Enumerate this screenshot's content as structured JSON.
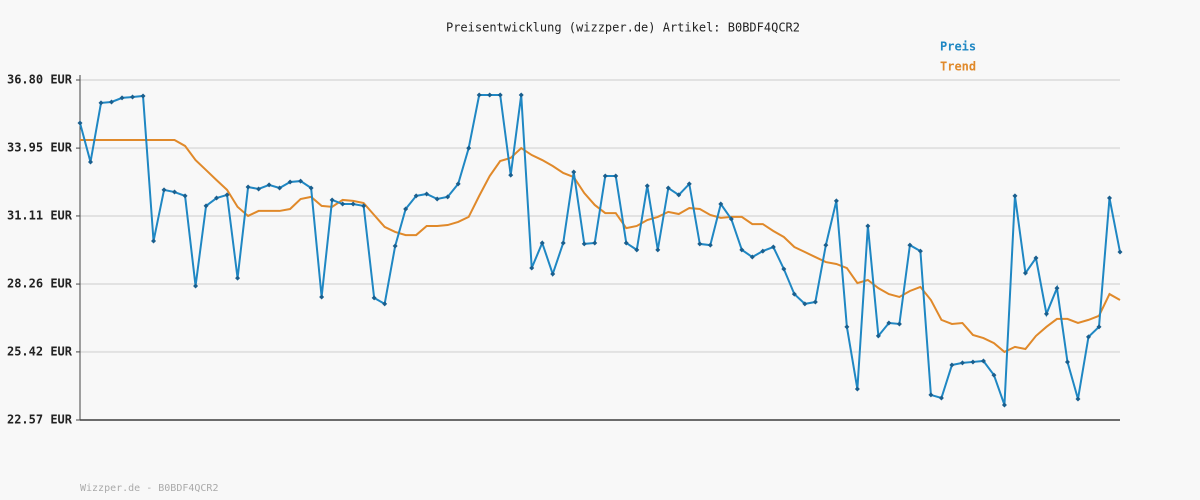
{
  "chart_data": {
    "type": "line",
    "title": "Preisentwicklung (wizzper.de) Artikel: B0BDF4QCR2",
    "footer": "Wizzper.de - B0BDF4QCR2",
    "categories": [
      null,
      null,
      null,
      null,
      null,
      null,
      null,
      null,
      null,
      null,
      null,
      null,
      null,
      null,
      null,
      null,
      null,
      null,
      null,
      null,
      null,
      null,
      null,
      null,
      null,
      null,
      null,
      null,
      null,
      null,
      null,
      null,
      null,
      null,
      null,
      null,
      null,
      null,
      null,
      null,
      null,
      null,
      null,
      null,
      null,
      null,
      null,
      null,
      null,
      null,
      null,
      null,
      null,
      null,
      null,
      null,
      null,
      null,
      null,
      null,
      null,
      null,
      null,
      null,
      null,
      null,
      null,
      null,
      null,
      null,
      null,
      null,
      null,
      null,
      null,
      null,
      null,
      null,
      null,
      null,
      null,
      null,
      null,
      null,
      null,
      null,
      null,
      null,
      null,
      null,
      null,
      null,
      null,
      null,
      null,
      null,
      null,
      null,
      null,
      null
    ],
    "series": [
      {
        "name": "Preis",
        "color": "#1f87c3",
        "markers": true,
        "values": [
          35.0,
          33.37,
          35.84,
          35.88,
          36.05,
          36.09,
          36.13,
          30.06,
          32.2,
          32.11,
          31.95,
          28.18,
          31.53,
          31.86,
          31.99,
          28.51,
          32.32,
          32.24,
          32.41,
          32.28,
          32.53,
          32.57,
          32.28,
          27.72,
          31.78,
          31.61,
          31.61,
          31.53,
          27.68,
          27.43,
          29.85,
          31.4,
          31.95,
          32.03,
          31.82,
          31.91,
          32.45,
          33.95,
          36.17,
          36.17,
          36.17,
          32.82,
          36.17,
          28.93,
          29.98,
          28.68,
          29.98,
          32.95,
          29.94,
          29.98,
          32.78,
          32.78,
          29.98,
          29.69,
          32.37,
          29.69,
          32.28,
          31.99,
          32.45,
          29.94,
          29.89,
          31.61,
          30.98,
          29.69,
          29.39,
          29.64,
          29.81,
          28.89,
          27.84,
          27.43,
          27.51,
          29.89,
          31.74,
          26.47,
          23.87,
          30.69,
          26.09,
          26.63,
          26.59,
          29.89,
          29.64,
          23.62,
          23.49,
          24.87,
          24.96,
          25.0,
          25.04,
          24.45,
          23.2,
          31.95,
          28.72,
          29.35,
          27.01,
          28.09,
          25.0,
          23.45,
          26.05,
          26.47,
          31.86,
          29.6
        ]
      },
      {
        "name": "Trend",
        "color": "#e0892a",
        "markers": false,
        "values": [
          34.29,
          34.29,
          34.29,
          34.29,
          34.29,
          34.29,
          34.29,
          34.29,
          34.29,
          34.29,
          34.04,
          33.45,
          33.03,
          32.61,
          32.2,
          31.49,
          31.11,
          31.32,
          31.32,
          31.32,
          31.4,
          31.82,
          31.91,
          31.53,
          31.49,
          31.78,
          31.74,
          31.65,
          31.15,
          30.65,
          30.44,
          30.31,
          30.31,
          30.69,
          30.69,
          30.73,
          30.86,
          31.07,
          31.95,
          32.78,
          33.41,
          33.54,
          33.95,
          33.66,
          33.45,
          33.2,
          32.91,
          32.74,
          32.07,
          31.57,
          31.23,
          31.23,
          30.6,
          30.69,
          30.94,
          31.07,
          31.28,
          31.19,
          31.44,
          31.4,
          31.15,
          31.03,
          31.07,
          31.07,
          30.77,
          30.77,
          30.48,
          30.23,
          29.81,
          29.6,
          29.39,
          29.18,
          29.1,
          28.93,
          28.3,
          28.43,
          28.09,
          27.84,
          27.72,
          27.97,
          28.14,
          27.59,
          26.76,
          26.59,
          26.63,
          26.13,
          26.0,
          25.79,
          25.42,
          25.63,
          25.54,
          26.09,
          26.47,
          26.8,
          26.8,
          26.63,
          26.76,
          26.93,
          27.84,
          27.59
        ]
      }
    ],
    "ylim": [
      22.57,
      36.8
    ],
    "yticks": [
      {
        "value": 22.57,
        "label": "22.57 EUR"
      },
      {
        "value": 25.42,
        "label": "25.42 EUR"
      },
      {
        "value": 28.26,
        "label": "28.26 EUR"
      },
      {
        "value": 31.11,
        "label": "31.11 EUR"
      },
      {
        "value": 33.95,
        "label": "33.95 EUR"
      },
      {
        "value": 36.8,
        "label": "36.80 EUR"
      }
    ],
    "grid": true,
    "legend": "top-right"
  }
}
